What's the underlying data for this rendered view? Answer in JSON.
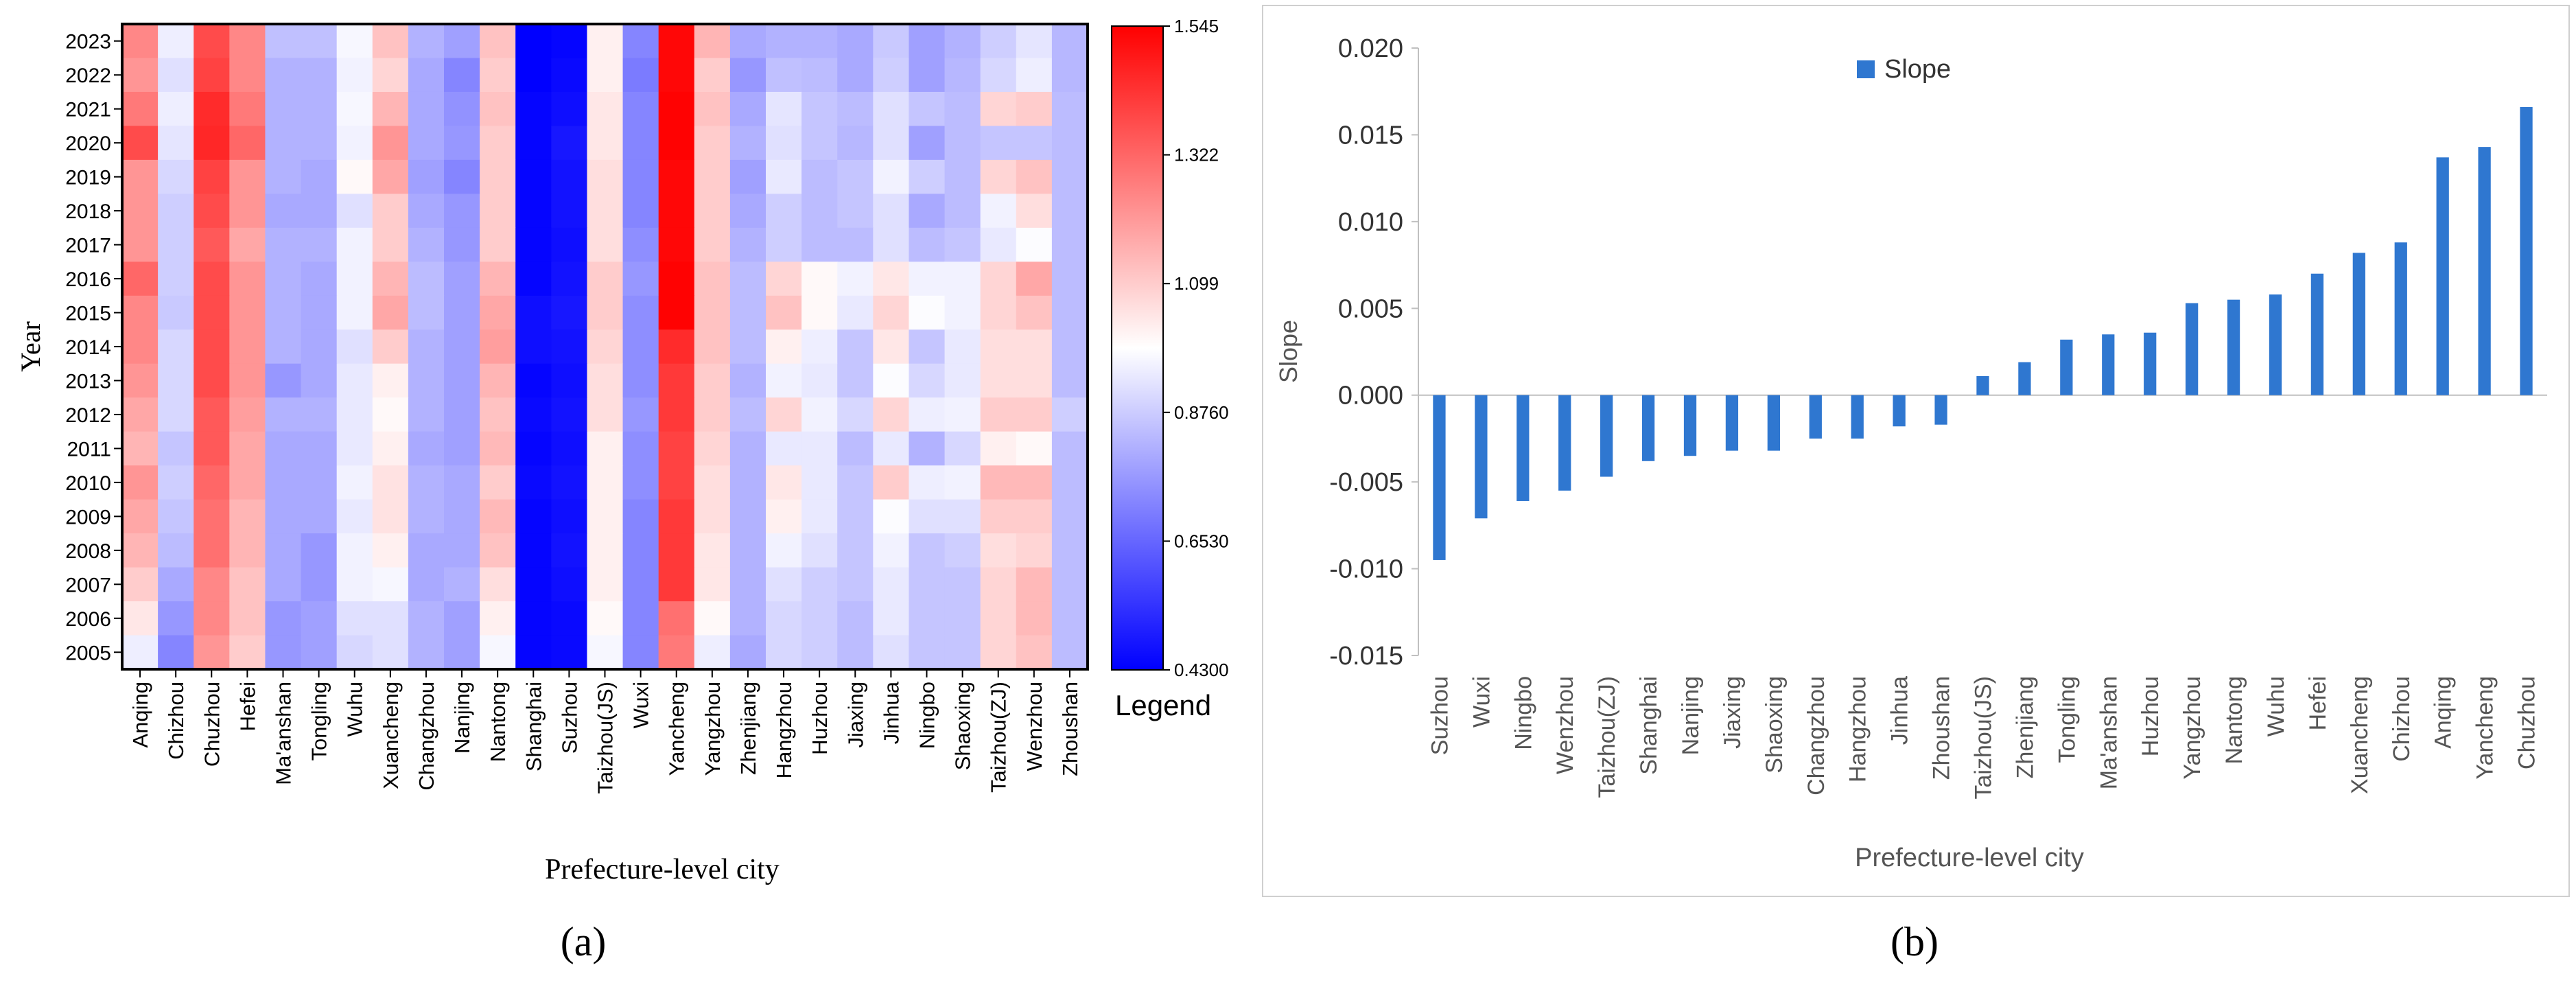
{
  "panels": {
    "a_label": "(a)",
    "b_label": "(b)"
  },
  "chart_data": [
    {
      "type": "heatmap",
      "panel": "(a)",
      "xlabel": "Prefecture-level city",
      "ylabel": "Year",
      "x": [
        "Anqing",
        "Chizhou",
        "Chuzhou",
        "Hefei",
        "Ma'anshan",
        "Tongling",
        "Wuhu",
        "Xuancheng",
        "Changzhou",
        "Nanjing",
        "Nantong",
        "Shanghai",
        "Suzhou",
        "Taizhou(JS)",
        "Wuxi",
        "Yancheng",
        "Yangzhou",
        "Zhenjiang",
        "Hangzhou",
        "Huzhou",
        "Jiaxing",
        "Jinhua",
        "Ningbo",
        "Shaoxing",
        "Taizhou(ZJ)",
        "Wenzhou",
        "Zhoushan"
      ],
      "y": [
        "2023",
        "2022",
        "2021",
        "2020",
        "2019",
        "2018",
        "2017",
        "2016",
        "2015",
        "2014",
        "2013",
        "2012",
        "2011",
        "2010",
        "2009",
        "2008",
        "2007",
        "2006",
        "2005"
      ],
      "values": [
        [
          1.25,
          0.95,
          1.38,
          1.25,
          0.85,
          0.85,
          0.97,
          1.12,
          0.82,
          0.78,
          1.12,
          0.43,
          0.44,
          1.02,
          0.72,
          1.53,
          1.15,
          0.8,
          0.82,
          0.82,
          0.8,
          0.87,
          0.78,
          0.82,
          0.88,
          0.93,
          0.83
        ],
        [
          1.22,
          0.92,
          1.4,
          1.25,
          0.82,
          0.82,
          0.96,
          1.08,
          0.8,
          0.72,
          1.1,
          0.43,
          0.45,
          1.02,
          0.7,
          1.53,
          1.1,
          0.76,
          0.85,
          0.84,
          0.8,
          0.88,
          0.78,
          0.83,
          0.9,
          0.95,
          0.83
        ],
        [
          1.28,
          0.95,
          1.45,
          1.28,
          0.82,
          0.82,
          0.97,
          1.15,
          0.8,
          0.75,
          1.12,
          0.44,
          0.46,
          1.04,
          0.72,
          1.54,
          1.12,
          0.8,
          0.93,
          0.86,
          0.84,
          0.92,
          0.86,
          0.84,
          1.08,
          1.1,
          0.84
        ],
        [
          1.38,
          0.93,
          1.46,
          1.32,
          0.82,
          0.82,
          0.96,
          1.22,
          0.8,
          0.76,
          1.1,
          0.44,
          0.48,
          1.04,
          0.72,
          1.54,
          1.1,
          0.82,
          0.92,
          0.86,
          0.83,
          0.92,
          0.78,
          0.84,
          0.86,
          0.86,
          0.84
        ],
        [
          1.22,
          0.9,
          1.4,
          1.22,
          0.82,
          0.8,
          1.0,
          1.18,
          0.78,
          0.72,
          1.1,
          0.44,
          0.47,
          1.06,
          0.72,
          1.53,
          1.1,
          0.78,
          0.94,
          0.84,
          0.86,
          0.96,
          0.88,
          0.84,
          1.08,
          1.12,
          0.84
        ],
        [
          1.22,
          0.88,
          1.38,
          1.22,
          0.8,
          0.8,
          0.92,
          1.1,
          0.8,
          0.76,
          1.1,
          0.44,
          0.47,
          1.06,
          0.72,
          1.53,
          1.1,
          0.8,
          0.88,
          0.84,
          0.86,
          0.92,
          0.8,
          0.84,
          0.96,
          1.06,
          0.84
        ],
        [
          1.22,
          0.88,
          1.35,
          1.18,
          0.82,
          0.82,
          0.96,
          1.1,
          0.82,
          0.76,
          1.1,
          0.44,
          0.46,
          1.06,
          0.74,
          1.53,
          1.1,
          0.82,
          0.88,
          0.84,
          0.84,
          0.92,
          0.84,
          0.86,
          0.94,
          0.98,
          0.84
        ],
        [
          1.32,
          0.88,
          1.38,
          1.22,
          0.82,
          0.8,
          0.96,
          1.15,
          0.84,
          0.78,
          1.15,
          0.44,
          0.47,
          1.1,
          0.76,
          1.54,
          1.12,
          0.84,
          1.08,
          1.0,
          0.96,
          1.04,
          0.96,
          0.96,
          1.08,
          1.18,
          0.84
        ],
        [
          1.25,
          0.87,
          1.38,
          1.22,
          0.82,
          0.8,
          0.96,
          1.18,
          0.84,
          0.78,
          1.18,
          0.46,
          0.48,
          1.1,
          0.74,
          1.54,
          1.12,
          0.84,
          1.12,
          1.0,
          0.94,
          1.08,
          0.98,
          0.96,
          1.08,
          1.12,
          0.84
        ],
        [
          1.25,
          0.9,
          1.38,
          1.22,
          0.82,
          0.8,
          0.92,
          1.1,
          0.82,
          0.78,
          1.2,
          0.46,
          0.47,
          1.08,
          0.74,
          1.45,
          1.12,
          0.84,
          1.02,
          0.95,
          0.86,
          1.04,
          0.86,
          0.94,
          1.06,
          1.06,
          0.84
        ],
        [
          1.22,
          0.9,
          1.38,
          1.22,
          0.76,
          0.8,
          0.94,
          1.02,
          0.82,
          0.78,
          1.15,
          0.44,
          0.46,
          1.06,
          0.74,
          1.42,
          1.1,
          0.82,
          0.96,
          0.94,
          0.86,
          0.98,
          0.9,
          0.94,
          1.06,
          1.06,
          0.84
        ],
        [
          1.18,
          0.9,
          1.35,
          1.2,
          0.82,
          0.82,
          0.94,
          1.0,
          0.82,
          0.78,
          1.12,
          0.45,
          0.47,
          1.06,
          0.76,
          1.42,
          1.1,
          0.84,
          1.08,
          0.96,
          0.9,
          1.08,
          0.95,
          0.96,
          1.1,
          1.1,
          0.88
        ],
        [
          1.15,
          0.86,
          1.35,
          1.18,
          0.8,
          0.8,
          0.94,
          1.02,
          0.8,
          0.78,
          1.14,
          0.44,
          0.46,
          1.02,
          0.74,
          1.4,
          1.08,
          0.82,
          0.94,
          0.94,
          0.84,
          0.94,
          0.82,
          0.9,
          1.02,
          1.0,
          0.84
        ],
        [
          1.22,
          0.88,
          1.32,
          1.18,
          0.8,
          0.8,
          0.96,
          1.05,
          0.82,
          0.8,
          1.1,
          0.45,
          0.47,
          1.02,
          0.74,
          1.4,
          1.06,
          0.82,
          1.04,
          0.94,
          0.86,
          1.1,
          0.95,
          0.96,
          1.14,
          1.14,
          0.84
        ],
        [
          1.18,
          0.86,
          1.3,
          1.15,
          0.8,
          0.8,
          0.94,
          1.05,
          0.82,
          0.8,
          1.14,
          0.44,
          0.46,
          1.02,
          0.72,
          1.42,
          1.06,
          0.82,
          1.02,
          0.94,
          0.86,
          0.98,
          0.92,
          0.92,
          1.1,
          1.1,
          0.84
        ],
        [
          1.15,
          0.84,
          1.3,
          1.15,
          0.8,
          0.76,
          0.96,
          1.02,
          0.8,
          0.8,
          1.12,
          0.44,
          0.47,
          1.02,
          0.72,
          1.42,
          1.04,
          0.82,
          0.96,
          0.92,
          0.86,
          0.96,
          0.86,
          0.88,
          1.06,
          1.08,
          0.84
        ],
        [
          1.1,
          0.8,
          1.25,
          1.12,
          0.8,
          0.76,
          0.96,
          0.97,
          0.8,
          0.82,
          1.06,
          0.44,
          0.46,
          1.02,
          0.72,
          1.42,
          1.04,
          0.82,
          0.92,
          0.88,
          0.86,
          0.94,
          0.86,
          0.86,
          1.08,
          1.14,
          0.84
        ],
        [
          1.04,
          0.76,
          1.25,
          1.12,
          0.76,
          0.78,
          0.92,
          0.92,
          0.82,
          0.78,
          1.02,
          0.44,
          0.45,
          1.0,
          0.72,
          1.3,
          1.0,
          0.82,
          0.9,
          0.88,
          0.84,
          0.94,
          0.86,
          0.86,
          1.08,
          1.14,
          0.84
        ],
        [
          0.95,
          0.72,
          1.22,
          1.1,
          0.76,
          0.78,
          0.9,
          0.92,
          0.82,
          0.78,
          0.97,
          0.44,
          0.45,
          0.97,
          0.72,
          1.28,
          0.95,
          0.8,
          0.9,
          0.88,
          0.84,
          0.92,
          0.86,
          0.86,
          1.08,
          1.12,
          0.84
        ]
      ],
      "colorbar": {
        "ticks": [
          "1.545",
          "1.322",
          "1.099",
          "0.8760",
          "0.6530",
          "0.4300"
        ],
        "min": 0.43,
        "max": 1.545,
        "label": "Legend",
        "colors": {
          "low": "#0000ff",
          "mid": "#ffffff",
          "high": "#ff0000"
        }
      }
    },
    {
      "type": "bar",
      "panel": "(b)",
      "xlabel": "Prefecture-level city",
      "ylabel": "Slope",
      "ylim": [
        -0.015,
        0.02
      ],
      "yticks": [
        "0.020",
        "0.015",
        "0.010",
        "0.005",
        "0.000",
        "-0.005",
        "-0.010",
        "-0.015"
      ],
      "legend": "top-center",
      "grid": false,
      "bar_color": "#2f77d0",
      "categories": [
        "Suzhou",
        "Wuxi",
        "Ningbo",
        "Wenzhou",
        "Taizhou(ZJ)",
        "Shanghai",
        "Nanjing",
        "Jiaxing",
        "Shaoxing",
        "Changzhou",
        "Hangzhou",
        "Jinhua",
        "Zhoushan",
        "Taizhou(JS)",
        "Zhenjiang",
        "Tongling",
        "Ma'anshan",
        "Huzhou",
        "Yangzhou",
        "Nantong",
        "Wuhu",
        "Hefei",
        "Xuancheng",
        "Chizhou",
        "Anqing",
        "Yancheng",
        "Chuzhou"
      ],
      "series": [
        {
          "name": "Slope",
          "values": [
            -0.0095,
            -0.0071,
            -0.0061,
            -0.0055,
            -0.0047,
            -0.0038,
            -0.0035,
            -0.0032,
            -0.0032,
            -0.0025,
            -0.0025,
            -0.0018,
            -0.0017,
            0.0011,
            0.0019,
            0.0032,
            0.0035,
            0.0036,
            0.0053,
            0.0055,
            0.0058,
            0.007,
            0.0082,
            0.0088,
            0.0137,
            0.0143,
            0.0166
          ]
        }
      ]
    }
  ]
}
